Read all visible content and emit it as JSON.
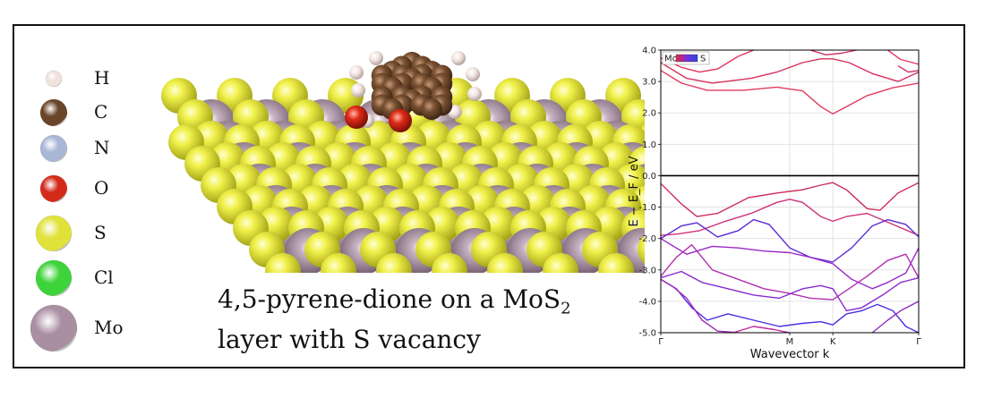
{
  "legend": [
    {
      "symbol": "H",
      "color": "#f1e2de",
      "size": 18
    },
    {
      "symbol": "C",
      "color": "#6b4528",
      "size": 30
    },
    {
      "symbol": "N",
      "color": "#a9b7d6",
      "size": 30
    },
    {
      "symbol": "O",
      "color": "#d42a1a",
      "size": 30
    },
    {
      "symbol": "S",
      "color": "#e0e23a",
      "size": 40
    },
    {
      "symbol": "Cl",
      "color": "#3ed33a",
      "size": 40
    },
    {
      "symbol": "Mo",
      "color": "#a98fa2",
      "size": 52
    }
  ],
  "caption": {
    "line1_main": "4,5-pyrene-dione on a MoS",
    "line1_sub": "2",
    "line2": "layer with S vacancy"
  },
  "colorbar": {
    "left_label": "Mo",
    "right_label": "S",
    "colors": [
      "#e8283c",
      "#7a2fd8",
      "#2a46e6"
    ]
  },
  "chart_data": {
    "type": "line",
    "xlabel": "Wavevector k",
    "ylabel": "E − E_F / eV",
    "ylim": [
      -5.0,
      4.0
    ],
    "yticks": [
      -5.0,
      -4.0,
      -3.0,
      -2.0,
      -1.0,
      0.0,
      1.0,
      2.0,
      3.0,
      4.0
    ],
    "xticks": [
      {
        "label": "Γ",
        "k": 0.0
      },
      {
        "label": "M",
        "k": 0.5
      },
      {
        "label": "K",
        "k": 0.667
      },
      {
        "label": "Γ",
        "k": 1.0
      }
    ],
    "fermi_level": 0.0,
    "bands": [
      {
        "color": "#e23a5a",
        "points": [
          [
            0,
            3.35
          ],
          [
            0.08,
            2.95
          ],
          [
            0.18,
            2.72
          ],
          [
            0.32,
            2.72
          ],
          [
            0.45,
            2.82
          ],
          [
            0.55,
            2.7
          ],
          [
            0.62,
            2.2
          ],
          [
            0.667,
            1.97
          ],
          [
            0.72,
            2.2
          ],
          [
            0.8,
            2.55
          ],
          [
            0.9,
            2.8
          ],
          [
            1.0,
            2.95
          ]
        ]
      },
      {
        "color": "#d8305c",
        "points": [
          [
            0,
            3.6
          ],
          [
            0.1,
            3.1
          ],
          [
            0.2,
            2.95
          ],
          [
            0.35,
            3.1
          ],
          [
            0.45,
            3.3
          ],
          [
            0.55,
            3.6
          ],
          [
            0.62,
            3.72
          ],
          [
            0.667,
            3.72
          ],
          [
            0.73,
            3.6
          ],
          [
            0.82,
            3.25
          ],
          [
            0.92,
            3.0
          ],
          [
            1.0,
            3.3
          ]
        ]
      },
      {
        "color": "#e6325a",
        "points": [
          [
            0,
            3.75
          ],
          [
            0.08,
            3.45
          ],
          [
            0.15,
            3.3
          ],
          [
            0.22,
            3.4
          ],
          [
            0.3,
            3.8
          ],
          [
            0.36,
            4.0
          ]
        ]
      },
      {
        "color": "#d03068",
        "points": [
          [
            0.58,
            4.0
          ],
          [
            0.64,
            3.85
          ],
          [
            0.7,
            3.9
          ],
          [
            0.76,
            4.0
          ]
        ]
      },
      {
        "color": "#e63e6a",
        "points": [
          [
            0.88,
            4.0
          ],
          [
            0.93,
            3.7
          ],
          [
            1.0,
            3.55
          ]
        ]
      },
      {
        "color": "#cc3860",
        "points": [
          [
            0.92,
            3.5
          ],
          [
            0.96,
            3.3
          ],
          [
            1.0,
            3.35
          ]
        ]
      },
      {
        "color": "#cc2e5a",
        "points": [
          [
            0,
            -0.25
          ],
          [
            0.08,
            -0.9
          ],
          [
            0.14,
            -1.3
          ],
          [
            0.22,
            -1.2
          ],
          [
            0.34,
            -0.7
          ],
          [
            0.45,
            -0.55
          ],
          [
            0.55,
            -0.45
          ],
          [
            0.62,
            -0.3
          ],
          [
            0.667,
            -0.22
          ],
          [
            0.72,
            -0.45
          ],
          [
            0.8,
            -1.05
          ],
          [
            0.85,
            -1.1
          ],
          [
            0.92,
            -0.55
          ],
          [
            1.0,
            -0.22
          ]
        ]
      },
      {
        "color": "#d0307a",
        "points": [
          [
            0,
            -1.9
          ],
          [
            0.07,
            -1.85
          ],
          [
            0.15,
            -1.75
          ],
          [
            0.25,
            -1.45
          ],
          [
            0.35,
            -1.2
          ],
          [
            0.45,
            -0.85
          ],
          [
            0.5,
            -0.75
          ],
          [
            0.55,
            -0.85
          ],
          [
            0.62,
            -1.3
          ],
          [
            0.667,
            -1.45
          ],
          [
            0.72,
            -1.3
          ],
          [
            0.8,
            -1.2
          ],
          [
            0.9,
            -1.55
          ],
          [
            1.0,
            -1.9
          ]
        ]
      },
      {
        "color": "#5a2ad8",
        "points": [
          [
            0,
            -2.0
          ],
          [
            0.08,
            -1.6
          ],
          [
            0.14,
            -1.5
          ],
          [
            0.22,
            -1.95
          ],
          [
            0.3,
            -1.75
          ],
          [
            0.36,
            -1.4
          ],
          [
            0.42,
            -1.55
          ],
          [
            0.5,
            -2.3
          ],
          [
            0.58,
            -2.6
          ],
          [
            0.667,
            -2.75
          ],
          [
            0.74,
            -2.3
          ],
          [
            0.82,
            -1.6
          ],
          [
            0.88,
            -1.4
          ],
          [
            0.95,
            -1.55
          ],
          [
            1.0,
            -1.95
          ]
        ]
      },
      {
        "color": "#9a2ac8",
        "points": [
          [
            0,
            -2.0
          ],
          [
            0.1,
            -2.5
          ],
          [
            0.2,
            -2.25
          ],
          [
            0.3,
            -2.3
          ],
          [
            0.4,
            -2.4
          ],
          [
            0.5,
            -2.45
          ],
          [
            0.58,
            -2.6
          ],
          [
            0.667,
            -2.8
          ],
          [
            0.74,
            -3.3
          ],
          [
            0.82,
            -3.6
          ],
          [
            0.88,
            -3.4
          ],
          [
            0.95,
            -3.1
          ],
          [
            1.0,
            -2.3
          ]
        ]
      },
      {
        "color": "#b030b0",
        "points": [
          [
            0,
            -3.2
          ],
          [
            0.06,
            -2.6
          ],
          [
            0.12,
            -2.2
          ],
          [
            0.2,
            -3.0
          ],
          [
            0.3,
            -3.3
          ],
          [
            0.4,
            -3.6
          ],
          [
            0.5,
            -3.75
          ],
          [
            0.58,
            -3.9
          ],
          [
            0.667,
            -3.95
          ],
          [
            0.73,
            -3.6
          ],
          [
            0.8,
            -3.2
          ],
          [
            0.88,
            -2.7
          ],
          [
            0.95,
            -2.5
          ],
          [
            1.0,
            -3.25
          ]
        ]
      },
      {
        "color": "#8a2ad0",
        "points": [
          [
            0,
            -3.25
          ],
          [
            0.08,
            -3.05
          ],
          [
            0.16,
            -3.4
          ],
          [
            0.26,
            -3.6
          ],
          [
            0.36,
            -3.8
          ],
          [
            0.46,
            -3.9
          ],
          [
            0.55,
            -3.6
          ],
          [
            0.62,
            -3.5
          ],
          [
            0.667,
            -3.6
          ],
          [
            0.72,
            -4.3
          ],
          [
            0.78,
            -4.2
          ],
          [
            0.86,
            -3.8
          ],
          [
            0.93,
            -3.4
          ],
          [
            1.0,
            -3.25
          ]
        ]
      },
      {
        "color": "#4a2ee0",
        "points": [
          [
            0,
            -3.3
          ],
          [
            0.06,
            -3.6
          ],
          [
            0.12,
            -4.2
          ],
          [
            0.18,
            -4.6
          ],
          [
            0.26,
            -4.4
          ],
          [
            0.36,
            -4.6
          ],
          [
            0.46,
            -4.8
          ],
          [
            0.55,
            -4.7
          ],
          [
            0.62,
            -4.65
          ],
          [
            0.667,
            -4.75
          ],
          [
            0.72,
            -4.4
          ],
          [
            0.78,
            -4.3
          ],
          [
            0.84,
            -4.1
          ],
          [
            0.9,
            -4.3
          ],
          [
            0.95,
            -4.8
          ],
          [
            1.0,
            -5.0
          ]
        ]
      },
      {
        "color": "#a028b8",
        "points": [
          [
            0,
            -3.3
          ],
          [
            0.05,
            -3.55
          ],
          [
            0.1,
            -3.9
          ],
          [
            0.16,
            -4.6
          ],
          [
            0.22,
            -4.95
          ],
          [
            0.3,
            -5.0
          ]
        ]
      },
      {
        "color": "#c02aa0",
        "points": [
          [
            0.28,
            -5.0
          ],
          [
            0.36,
            -4.8
          ],
          [
            0.44,
            -4.9
          ],
          [
            0.5,
            -5.0
          ]
        ]
      },
      {
        "color": "#9030c0",
        "points": [
          [
            0.82,
            -5.0
          ],
          [
            0.88,
            -4.6
          ],
          [
            0.93,
            -4.3
          ],
          [
            1.0,
            -4.0
          ]
        ]
      }
    ]
  }
}
